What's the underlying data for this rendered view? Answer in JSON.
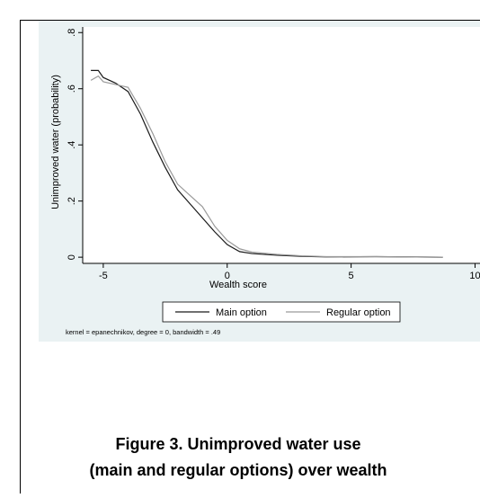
{
  "chart_data": {
    "type": "line",
    "x_label": "Wealth score",
    "y_label": "Unimproved water (probability)",
    "note": "kernel = epanechnikov, degree = 0, bandwidth = .49",
    "x": [
      -5.5,
      -5.2,
      -5,
      -4.5,
      -4,
      -3.5,
      -3,
      -2.5,
      -2,
      -1.5,
      -1,
      -0.5,
      0,
      0.5,
      1,
      2,
      3,
      4,
      6,
      8.7
    ],
    "series": [
      {
        "name": "Main option",
        "color": "#1a1a1a",
        "values": [
          0.665,
          0.665,
          0.64,
          0.62,
          0.59,
          0.51,
          0.41,
          0.32,
          0.24,
          0.19,
          0.14,
          0.09,
          0.045,
          0.02,
          0.013,
          0.007,
          0.003,
          0.001,
          0.002,
          0
        ]
      },
      {
        "name": "Regular option",
        "color": "#9a9a9a",
        "values": [
          0.63,
          0.645,
          0.625,
          0.615,
          0.605,
          0.53,
          0.44,
          0.34,
          0.26,
          0.22,
          0.18,
          0.11,
          0.06,
          0.03,
          0.018,
          0.01,
          0.005,
          0.002,
          0.002,
          0
        ]
      }
    ],
    "xlim": [
      -5.83,
      10.2
    ],
    "xticks": [
      -5,
      0,
      5,
      10
    ],
    "ylim": [
      -0.022,
      0.82
    ],
    "yticks": [
      0,
      {
        "value": 0.2,
        "label": ".2"
      },
      {
        "value": 0.4,
        "label": ".4"
      },
      {
        "value": 0.6,
        "label": ".6"
      },
      {
        "value": 0.8,
        "label": ".8"
      }
    ],
    "grid": false,
    "legend": "bottom"
  },
  "caption_lines": [
    "Figure 3. Unimproved water use",
    "(main and regular options) over wealth"
  ]
}
